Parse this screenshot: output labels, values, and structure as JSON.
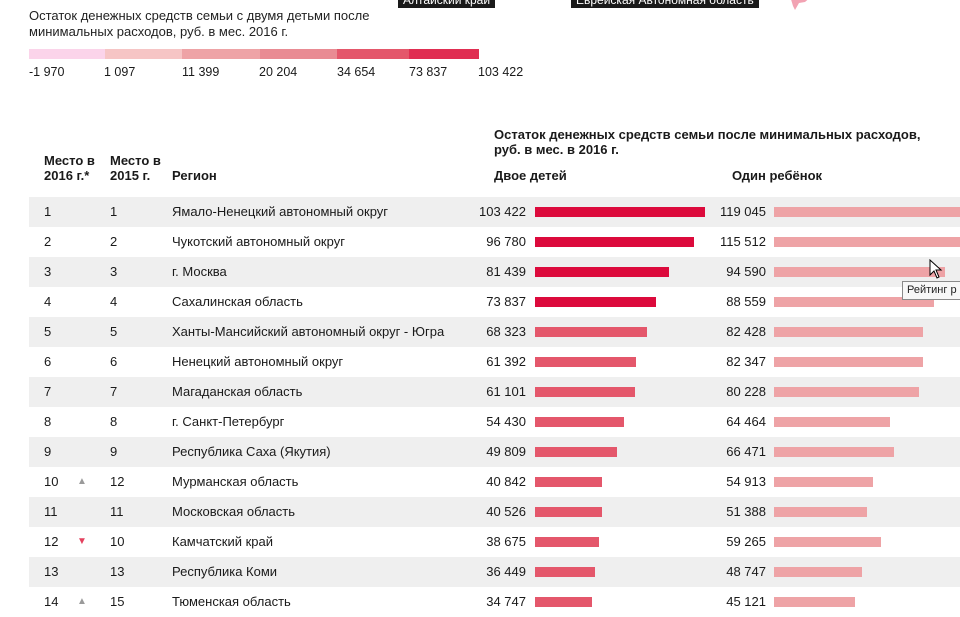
{
  "map": {
    "label_altai": "Алтайский край",
    "label_jewish": "Еврейская Автономная область",
    "shape_color": "#f2a3b3"
  },
  "legend": {
    "title": "Остаток денежных средств семьи с двумя детьми после минимальных расходов, руб. в мес. 2016 г.",
    "colors": [
      "#fbd4ea",
      "#f6c5c5",
      "#eea3a6",
      "#e98b93",
      "#e4576b",
      "#e02e52",
      "#dc0a3c"
    ],
    "labels": [
      "-1 970",
      "1 097",
      "11 399",
      "20 204",
      "34 654",
      "73 837",
      "103 422"
    ]
  },
  "table": {
    "header": {
      "rank_2016": "Место в 2016 г.*",
      "rank_2015": "Место в 2015 г.",
      "region": "Регион",
      "group_title": "Остаток денежных средств семьи после минимальных расходов, руб. в мес. в 2016 г.",
      "two_children": "Двое детей",
      "one_child": "Один ребёнок"
    },
    "rows": [
      {
        "rank": "1",
        "trend": "",
        "prev": "1",
        "region": "Ямало-Ненецкий автономный округ",
        "two": "103 422",
        "one": "119 045",
        "two_num": 103422,
        "one_num": 119045
      },
      {
        "rank": "2",
        "trend": "",
        "prev": "2",
        "region": "Чукотский автономный округ",
        "two": "96 780",
        "one": "115 512",
        "two_num": 96780,
        "one_num": 115512
      },
      {
        "rank": "3",
        "trend": "",
        "prev": "3",
        "region": "г. Москва",
        "two": "81 439",
        "one": "94 590",
        "two_num": 81439,
        "one_num": 94590
      },
      {
        "rank": "4",
        "trend": "",
        "prev": "4",
        "region": "Сахалинская область",
        "two": "73 837",
        "one": "88 559",
        "two_num": 73837,
        "one_num": 88559
      },
      {
        "rank": "5",
        "trend": "",
        "prev": "5",
        "region": "Ханты-Мансийский автономный округ - Югра",
        "two": "68 323",
        "one": "82 428",
        "two_num": 68323,
        "one_num": 82428
      },
      {
        "rank": "6",
        "trend": "",
        "prev": "6",
        "region": "Ненецкий автономный округ",
        "two": "61 392",
        "one": "82 347",
        "two_num": 61392,
        "one_num": 82347
      },
      {
        "rank": "7",
        "trend": "",
        "prev": "7",
        "region": "Магаданская область",
        "two": "61 101",
        "one": "80 228",
        "two_num": 61101,
        "one_num": 80228
      },
      {
        "rank": "8",
        "trend": "",
        "prev": "8",
        "region": "г. Санкт-Петербург",
        "two": "54 430",
        "one": "64 464",
        "two_num": 54430,
        "one_num": 64464
      },
      {
        "rank": "9",
        "trend": "",
        "prev": "9",
        "region": "Республика Саха (Якутия)",
        "two": "49 809",
        "one": "66 471",
        "two_num": 49809,
        "one_num": 66471
      },
      {
        "rank": "10",
        "trend": "▲",
        "prev": "12",
        "region": "Мурманская область",
        "two": "40 842",
        "one": "54 913",
        "two_num": 40842,
        "one_num": 54913
      },
      {
        "rank": "11",
        "trend": "",
        "prev": "11",
        "region": "Московская область",
        "two": "40 526",
        "one": "51 388",
        "two_num": 40526,
        "one_num": 51388
      },
      {
        "rank": "12",
        "trend": "▼",
        "prev": "10",
        "region": "Камчатский край",
        "two": "38 675",
        "one": "59 265",
        "two_num": 38675,
        "one_num": 59265
      },
      {
        "rank": "13",
        "trend": "",
        "prev": "13",
        "region": "Республика Коми",
        "two": "36 449",
        "one": "48 747",
        "two_num": 36449,
        "one_num": 48747
      },
      {
        "rank": "14",
        "trend": "▲",
        "prev": "15",
        "region": "Тюменская область",
        "two": "34 747",
        "one": "45 121",
        "two_num": 34747,
        "one_num": 45121
      }
    ],
    "row_shading": [
      true,
      false,
      true,
      false,
      true,
      false,
      true,
      false,
      true,
      false,
      true,
      false,
      true,
      false
    ]
  },
  "tooltip": {
    "text": "Рейтинг р"
  }
}
